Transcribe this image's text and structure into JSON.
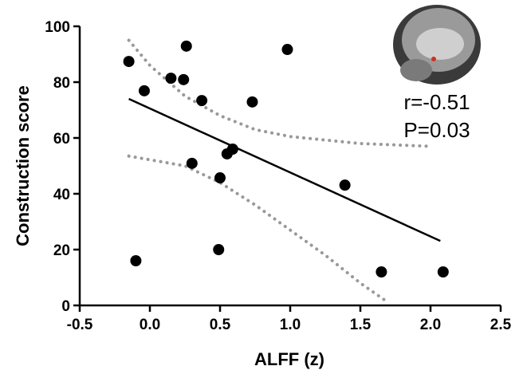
{
  "chart_data": {
    "type": "scatter",
    "x_label": "ALFF (z)",
    "y_label": "Construction score",
    "annotations": [
      "r=-0.51",
      "P=0.03"
    ],
    "xlim": [
      -0.5,
      2.5
    ],
    "ylim": [
      0,
      100
    ],
    "xticks": [
      -0.5,
      {
        "value": 0,
        "label": "0.0"
      },
      0.5,
      {
        "value": 1,
        "label": "1.0"
      },
      1.5,
      {
        "value": 2,
        "label": "2.0"
      },
      2.5
    ],
    "yticks": [
      0,
      20,
      40,
      60,
      80,
      100
    ],
    "points": {
      "color": "#000000",
      "x": [
        -0.15,
        -0.1,
        -0.04,
        0.15,
        0.24,
        0.26,
        0.37,
        0.3,
        0.5,
        0.55,
        0.59,
        0.49,
        0.73,
        0.98,
        1.39,
        1.65,
        2.09
      ],
      "y": [
        87.4,
        16,
        76.9,
        81.4,
        80.9,
        92.9,
        73.4,
        50.9,
        45.7,
        54.3,
        56,
        20,
        72.9,
        91.7,
        43.1,
        12,
        12
      ]
    },
    "fit_line": {
      "color": "#000000",
      "x": [
        -0.15,
        2.07
      ],
      "y": [
        74,
        23.1
      ]
    },
    "confidence_bands": [
      {
        "color": "#999999",
        "x": [
          -0.15,
          0,
          0.25,
          0.5,
          0.75,
          1,
          1.5,
          2
        ],
        "y": [
          95,
          86,
          75,
          68,
          63,
          60.5,
          58,
          57
        ]
      },
      {
        "color": "#999999",
        "x": [
          -0.15,
          0.25,
          0.5,
          0.75,
          1,
          1.25,
          1.5,
          1.7
        ],
        "y": [
          53.5,
          50,
          44,
          36,
          27,
          18,
          8,
          1
        ]
      }
    ]
  }
}
